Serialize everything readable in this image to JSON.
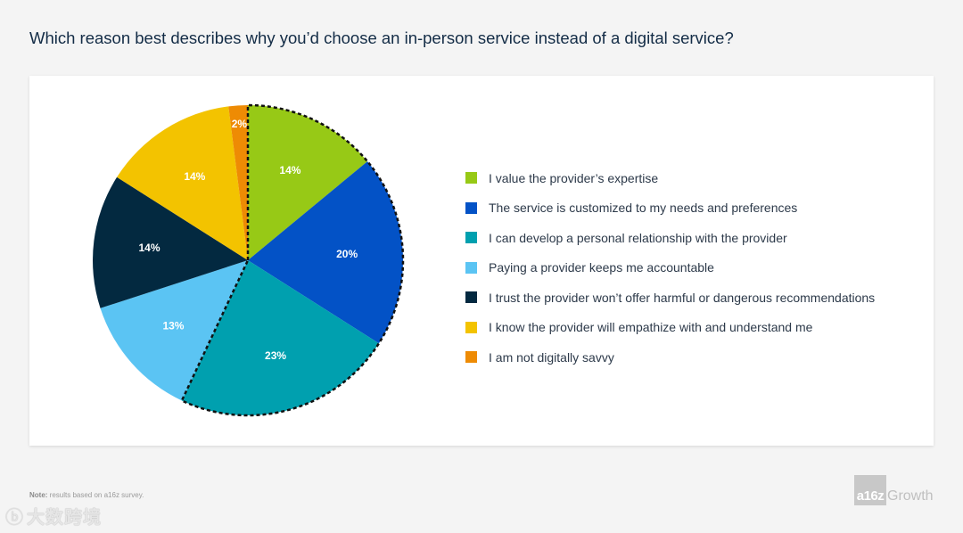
{
  "title": "Which reason best describes why you’d choose an in-person service instead of a digital service?",
  "chart_data": {
    "type": "pie",
    "title": "Which reason best describes why you’d choose an in-person service instead of a digital service?",
    "slices": [
      {
        "label": "I value the provider’s expertise",
        "value": 14,
        "display": "14%",
        "color": "#97c916",
        "highlighted": true
      },
      {
        "label": "The service is customized to my needs and preferences",
        "value": 20,
        "display": "20%",
        "color": "#0352c6",
        "highlighted": true
      },
      {
        "label": "I can develop a personal relationship with the provider",
        "value": 23,
        "display": "23%",
        "color": "#00a0af",
        "highlighted": true
      },
      {
        "label": "Paying a provider keeps me accountable",
        "value": 13,
        "display": "13%",
        "color": "#5bc4f3",
        "highlighted": false
      },
      {
        "label": "I trust the provider won’t offer harmful or dangerous recommendations",
        "value": 14,
        "display": "14%",
        "color": "#032940",
        "highlighted": false
      },
      {
        "label": "I know the provider will empathize with and understand me",
        "value": 14,
        "display": "14%",
        "color": "#f3c300",
        "highlighted": false
      },
      {
        "label": "I am not digitally savvy",
        "value": 2,
        "display": "2%",
        "color": "#ee8b04",
        "highlighted": false
      }
    ],
    "legend_position": "right"
  },
  "note": {
    "label": "Note:",
    "text": " results based on a16z survey."
  },
  "brand": {
    "mark": "a16z",
    "name": "Growth"
  },
  "watermark": {
    "icon": "ⓑ",
    "text": "大数跨境"
  }
}
